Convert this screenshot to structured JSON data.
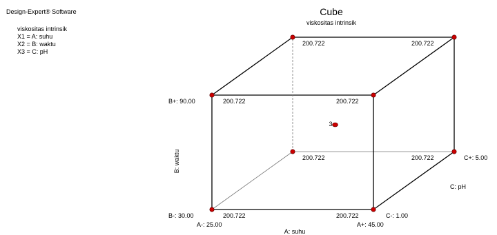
{
  "app": {
    "software_title": "Design-Expert® Software",
    "response": "viskositas intrinsik",
    "factors": [
      "X1 = A: suhu",
      "X2 = B: waktu",
      "X3 = C: pH"
    ]
  },
  "chart_data": {
    "type": "cube",
    "title": "Cube",
    "subtitle": "viskositas intrinsik",
    "axes": {
      "A": {
        "label": "A: suhu",
        "low_label": "A-: 25.00",
        "high_label": "A+: 45.00",
        "low": 25.0,
        "high": 45.0
      },
      "B": {
        "label": "B: waktu",
        "low_label": "B-: 30.00",
        "high_label": "B+: 90.00",
        "low": 30.0,
        "high": 90.0
      },
      "C": {
        "label": "C: pH",
        "low_label": "C-: 1.00",
        "high_label": "C+: 5.00",
        "low": 1.0,
        "high": 5.0
      }
    },
    "corners": [
      {
        "A": "-",
        "B": "-",
        "C": "-",
        "value": "200.722"
      },
      {
        "A": "+",
        "B": "-",
        "C": "-",
        "value": "200.722"
      },
      {
        "A": "-",
        "B": "+",
        "C": "-",
        "value": "200.722"
      },
      {
        "A": "+",
        "B": "+",
        "C": "-",
        "value": "200.722"
      },
      {
        "A": "-",
        "B": "-",
        "C": "+",
        "value": "200.722"
      },
      {
        "A": "+",
        "B": "-",
        "C": "+",
        "value": "200.722"
      },
      {
        "A": "-",
        "B": "+",
        "C": "+",
        "value": "200.722"
      },
      {
        "A": "+",
        "B": "+",
        "C": "+",
        "value": "200.722"
      }
    ],
    "center_point": {
      "label": "3"
    },
    "colors": {
      "point": "#cc0000",
      "edge": "#000000",
      "hidden_edge": "#777777"
    }
  }
}
